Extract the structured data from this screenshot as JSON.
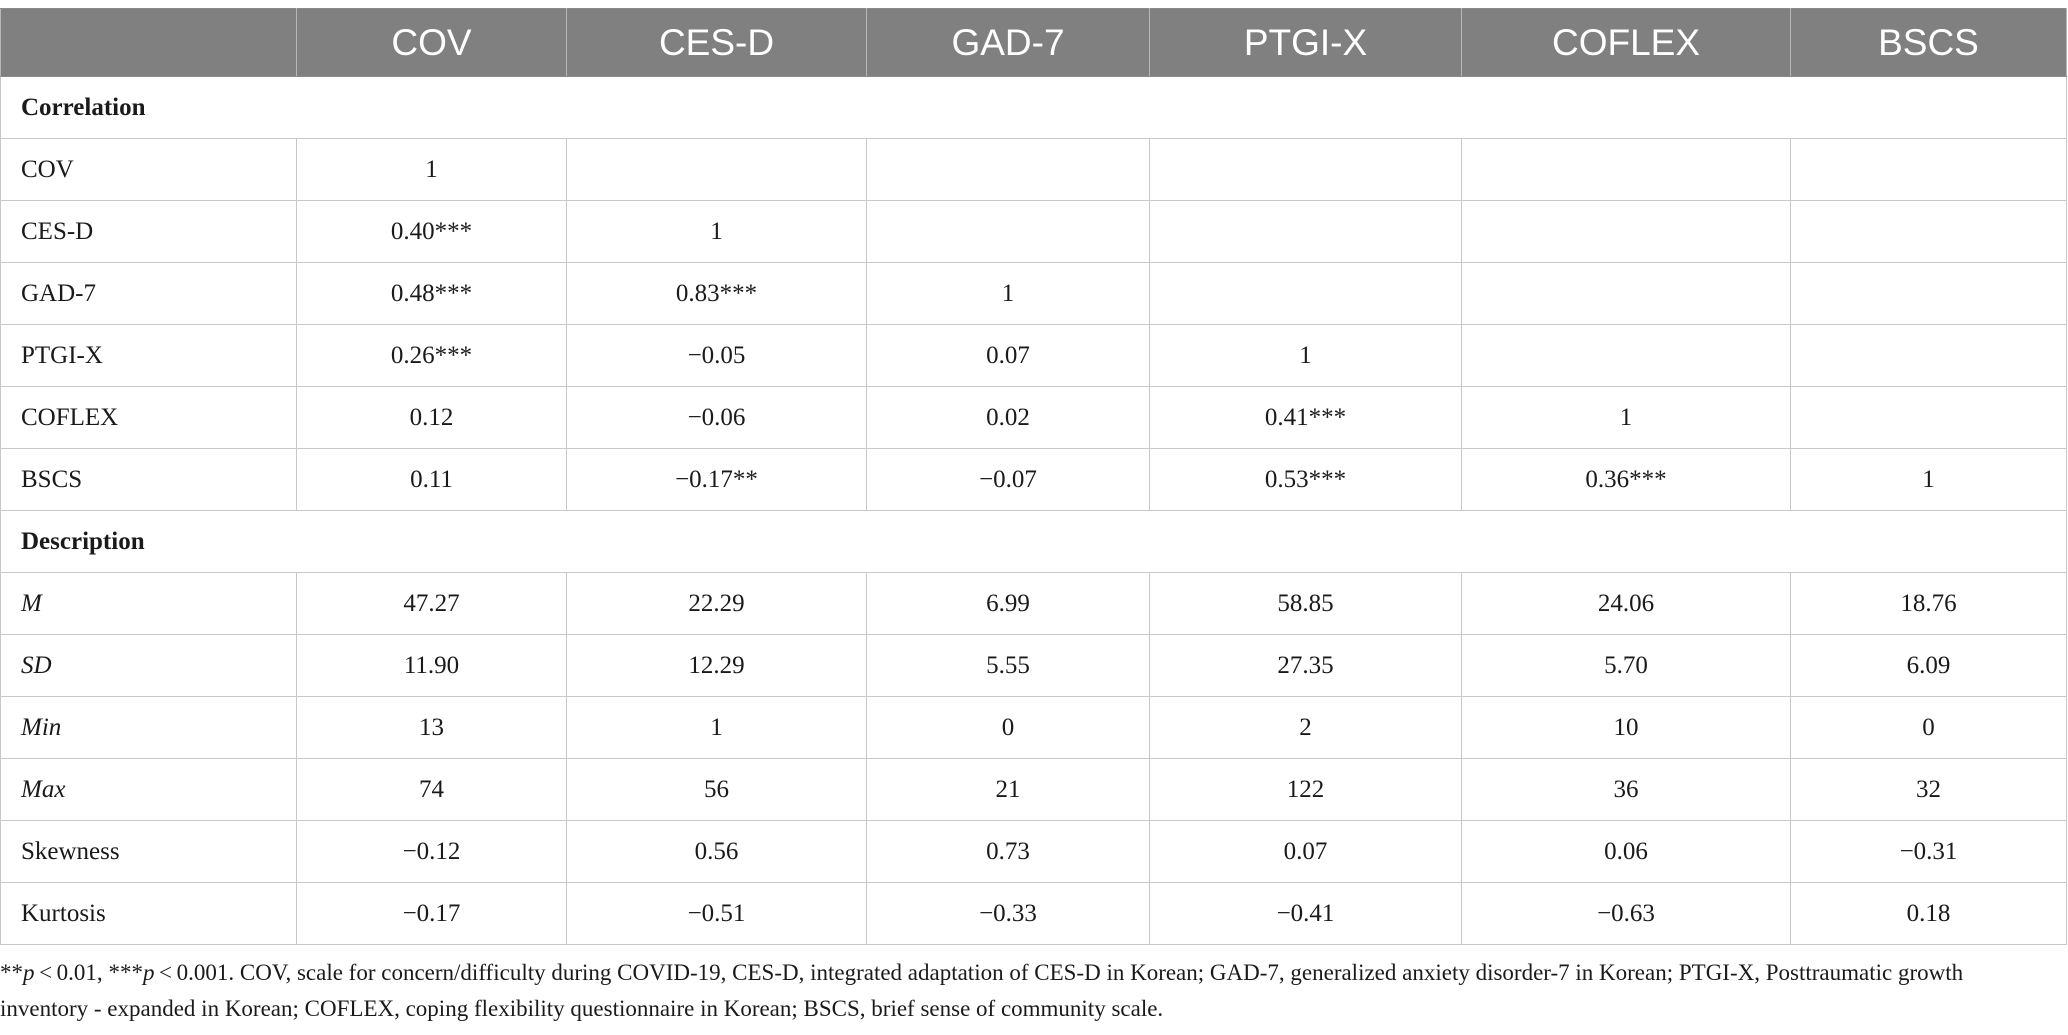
{
  "table": {
    "columns": [
      "",
      "COV",
      "CES-D",
      "GAD-7",
      "PTGI-X",
      "COFLEX",
      "BSCS"
    ],
    "sections": [
      {
        "title": "Correlation",
        "rows": [
          {
            "label": "COV",
            "italic": false,
            "cells": [
              "1",
              "",
              "",
              "",
              "",
              ""
            ]
          },
          {
            "label": "CES-D",
            "italic": false,
            "cells": [
              "0.40***",
              "1",
              "",
              "",
              "",
              ""
            ]
          },
          {
            "label": "GAD-7",
            "italic": false,
            "cells": [
              "0.48***",
              "0.83***",
              "1",
              "",
              "",
              ""
            ]
          },
          {
            "label": "PTGI-X",
            "italic": false,
            "cells": [
              "0.26***",
              "−0.05",
              "0.07",
              "1",
              "",
              ""
            ]
          },
          {
            "label": "COFLEX",
            "italic": false,
            "cells": [
              "0.12",
              "−0.06",
              "0.02",
              "0.41***",
              "1",
              ""
            ]
          },
          {
            "label": "BSCS",
            "italic": false,
            "cells": [
              "0.11",
              "−0.17**",
              "−0.07",
              "0.53***",
              "0.36***",
              "1"
            ]
          }
        ]
      },
      {
        "title": "Description",
        "rows": [
          {
            "label": "M",
            "italic": true,
            "cells": [
              "47.27",
              "22.29",
              "6.99",
              "58.85",
              "24.06",
              "18.76"
            ]
          },
          {
            "label": "SD",
            "italic": true,
            "cells": [
              "11.90",
              "12.29",
              "5.55",
              "27.35",
              "5.70",
              "6.09"
            ]
          },
          {
            "label": "Min",
            "italic": true,
            "cells": [
              "13",
              "1",
              "0",
              "2",
              "10",
              "0"
            ]
          },
          {
            "label": "Max",
            "italic": true,
            "cells": [
              "74",
              "56",
              "21",
              "122",
              "36",
              "32"
            ]
          },
          {
            "label": "Skewness",
            "italic": false,
            "cells": [
              "−0.12",
              "0.56",
              "0.73",
              "0.07",
              "0.06",
              "−0.31"
            ]
          },
          {
            "label": "Kurtosis",
            "italic": false,
            "cells": [
              "−0.17",
              "−0.51",
              "−0.33",
              "−0.41",
              "−0.63",
              "0.18"
            ]
          }
        ]
      }
    ]
  },
  "footnote": {
    "sig1_marker": "**",
    "sig1_p": "p",
    "sig1_text": " < 0.01, ",
    "sig2_marker": "***",
    "sig2_p": "p",
    "sig2_text": " < 0.001. COV, scale for concern/difficulty during COVID-19, CES-D, integrated adaptation of CES-D in Korean; GAD-7, generalized anxiety disorder-7 in Korean; PTGI-X, Posttraumatic growth inventory - expanded in Korean; COFLEX, coping flexibility questionnaire in Korean; BSCS, brief sense of community scale."
  },
  "colors": {
    "header_bg": "#808080",
    "header_text": "#ffffff",
    "grid": "#c8c8c8"
  }
}
